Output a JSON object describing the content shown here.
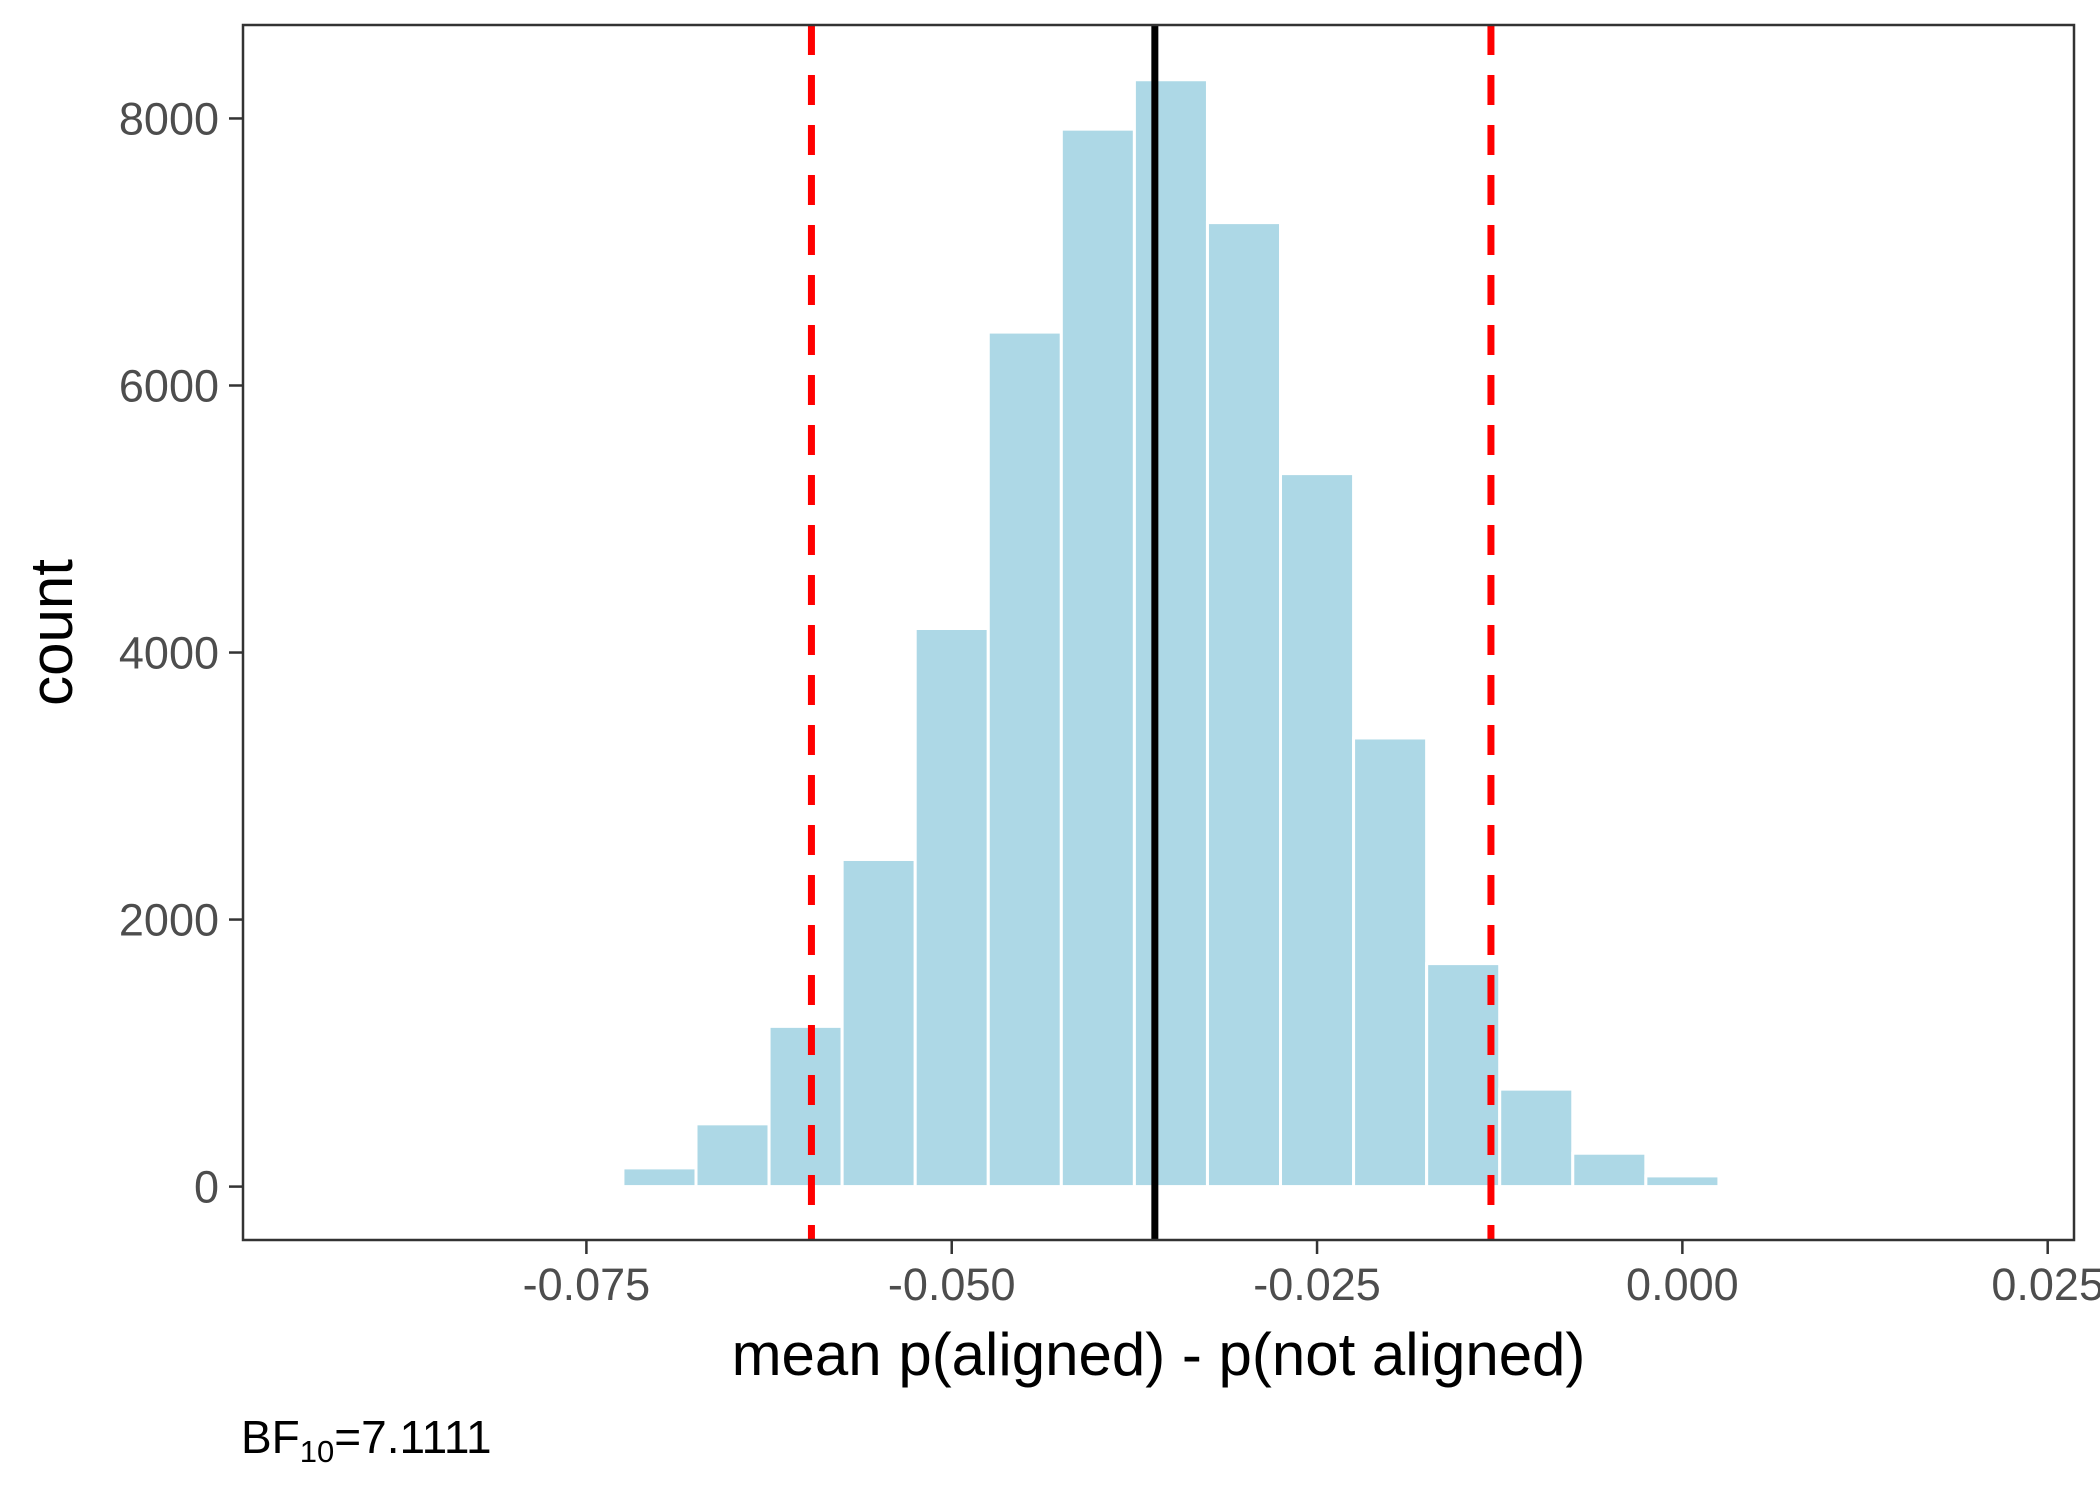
{
  "chart_data": {
    "type": "histogram",
    "xlabel": "mean p(aligned) - p(not aligned)",
    "ylabel": "count",
    "xlim": [
      -0.0985,
      0.0268
    ],
    "ylim": [
      -400,
      8700
    ],
    "x_ticks": [
      -0.075,
      -0.05,
      -0.025,
      0.0,
      0.025
    ],
    "x_tick_labels": [
      "-0.075",
      "-0.050",
      "-0.025",
      "0.000",
      "0.025"
    ],
    "y_ticks": [
      0,
      2000,
      4000,
      6000,
      8000
    ],
    "y_tick_labels": [
      "0",
      "2000",
      "4000",
      "6000",
      "8000"
    ],
    "bin_width": 0.005,
    "bins": [
      {
        "x": -0.075,
        "count": 20
      },
      {
        "x": -0.07,
        "count": 140
      },
      {
        "x": -0.065,
        "count": 470
      },
      {
        "x": -0.06,
        "count": 1200
      },
      {
        "x": -0.055,
        "count": 2450
      },
      {
        "x": -0.05,
        "count": 4180
      },
      {
        "x": -0.045,
        "count": 6400
      },
      {
        "x": -0.04,
        "count": 7920
      },
      {
        "x": -0.035,
        "count": 8290
      },
      {
        "x": -0.03,
        "count": 7220
      },
      {
        "x": -0.025,
        "count": 5340
      },
      {
        "x": -0.02,
        "count": 3360
      },
      {
        "x": -0.015,
        "count": 1670
      },
      {
        "x": -0.01,
        "count": 730
      },
      {
        "x": -0.005,
        "count": 250
      },
      {
        "x": 0.0,
        "count": 80
      }
    ],
    "mean_line": -0.0361,
    "interval_lines": [
      -0.0596,
      -0.0131
    ],
    "bar_color": "#add8e6",
    "mean_line_color": "#000000",
    "interval_line_color": "#ff0000",
    "grid": false
  },
  "caption": {
    "prefix": "BF",
    "subscript": "10",
    "suffix": "=7.1111"
  }
}
